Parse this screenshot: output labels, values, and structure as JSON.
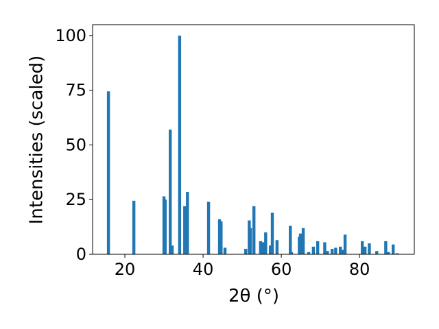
{
  "chart_data": {
    "type": "bar",
    "color": "#1f77b4",
    "xlabel": "2θ (°)",
    "ylabel": "Intensities (scaled)",
    "x": [
      15.8,
      22.3,
      30.0,
      30.3,
      31.6,
      32.1,
      34.0,
      35.3,
      36.0,
      41.4,
      44.2,
      44.6,
      45.6,
      50.9,
      51.8,
      52.1,
      53.0,
      54.7,
      55.3,
      56.0,
      57.2,
      57.7,
      58.9,
      62.3,
      62.6,
      64.6,
      64.9,
      65.6,
      67.0,
      68.2,
      69.3,
      71.1,
      71.8,
      73.0,
      73.9,
      75.1,
      75.6,
      76.3,
      80.7,
      81.4,
      82.5,
      84.4,
      86.7,
      87.4,
      88.6,
      89.6
    ],
    "values": [
      74.5,
      24.5,
      26.5,
      25,
      57,
      4,
      100,
      22,
      28.5,
      24,
      16,
      15,
      3,
      2.5,
      15.5,
      12,
      22,
      6,
      5.5,
      10,
      4,
      19,
      6.5,
      13,
      1,
      8,
      9.5,
      12,
      1,
      3.5,
      6,
      5.5,
      1.5,
      2.5,
      3,
      3.5,
      2,
      9,
      6,
      3.5,
      5,
      1.5,
      6,
      1,
      4.5,
      0.5
    ],
    "xlim": [
      11.75,
      94
    ],
    "xticks": [
      20,
      40,
      60,
      80
    ],
    "ylim": [
      0,
      105
    ],
    "yticks": [
      0,
      25,
      50,
      75,
      100
    ]
  }
}
